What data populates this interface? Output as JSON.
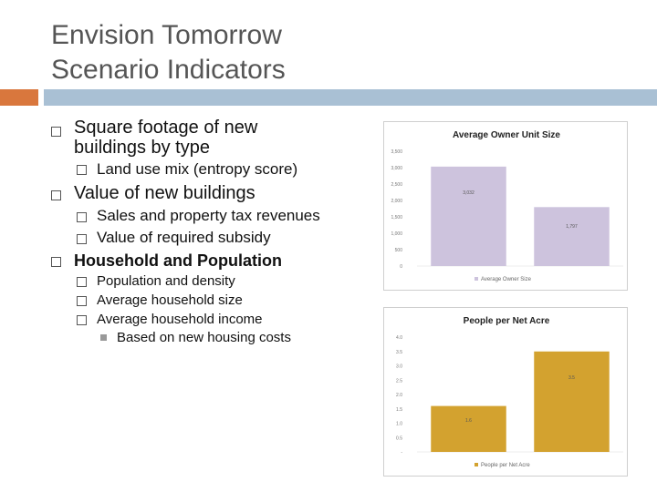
{
  "slide": {
    "title_line1": "Envision Tomorrow",
    "title_line2": "Scenario Indicators",
    "accent_orange": "#d9773d",
    "accent_blue": "#a9c0d4"
  },
  "bullets": {
    "b1": "Square footage of new",
    "b1_cont": "buildings by type",
    "b1_1": "Land use mix (entropy score)",
    "b2": "Value of new buildings",
    "b2_1": "Sales and property tax revenues",
    "b2_2": "Value of required subsidy",
    "b3": "Household and Population",
    "b3_1": "Population and density",
    "b3_2": "Average household size",
    "b3_3": "Average household income",
    "b3_3_1": "Based on new housing costs"
  },
  "chart_data": [
    {
      "type": "bar",
      "title": "Average Owner Unit Size",
      "categories": [
        "",
        ""
      ],
      "values": [
        3032,
        1797
      ],
      "data_labels": [
        "3,032",
        "1,797"
      ],
      "ylim": [
        0,
        3500
      ],
      "yticks": [
        "0",
        "500",
        "1,000",
        "1,500",
        "2,000",
        "2,500",
        "3,000",
        "3,500"
      ],
      "legend": "Average Owner Size",
      "legend_position": "bottom",
      "color": "#cdc3dd"
    },
    {
      "type": "bar",
      "title": "People per Net Acre",
      "categories": [
        "",
        ""
      ],
      "values": [
        1.6,
        3.5
      ],
      "data_labels": [
        "1.6",
        "3.5"
      ],
      "ylim": [
        0,
        4.0
      ],
      "yticks": [
        "-",
        "0.5",
        "1.0",
        "1.5",
        "2.0",
        "2.5",
        "3.0",
        "3.5",
        "4.0"
      ],
      "legend": "People per Net Acre",
      "legend_position": "bottom",
      "color": "#d3a22f"
    }
  ]
}
